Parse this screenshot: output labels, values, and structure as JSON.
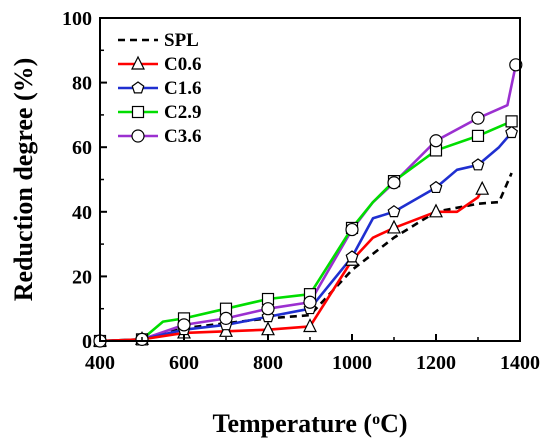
{
  "chart_data": {
    "type": "line",
    "xlabel_main": "Temperature (",
    "xlabel_sup": "o",
    "xlabel_end": "C)",
    "ylabel": "Reduction degree (%)",
    "xlim": [
      400,
      1400
    ],
    "ylim": [
      0,
      100
    ],
    "xticks": [
      "400",
      "600",
      "800",
      "1000",
      "1200",
      "1400"
    ],
    "yticks": [
      "0",
      "20",
      "40",
      "60",
      "80",
      "100"
    ],
    "legend_position": "top-left",
    "series": [
      {
        "name": "SPL",
        "color": "#000000",
        "dashed": true,
        "marker": "none",
        "x": [
          400,
          500,
          600,
          700,
          800,
          900,
          1000,
          1100,
          1200,
          1300,
          1350,
          1380
        ],
        "y": [
          0,
          0.5,
          4,
          5.5,
          7,
          8,
          22,
          32,
          40,
          42.5,
          43,
          52
        ],
        "marker_x": []
      },
      {
        "name": "C0.6",
        "color": "#ff0000",
        "marker": "triangle",
        "x": [
          400,
          500,
          600,
          700,
          800,
          900,
          1000,
          1050,
          1100,
          1200,
          1250,
          1300,
          1310
        ],
        "y": [
          0,
          0.5,
          2.5,
          3,
          3.5,
          4.5,
          25,
          32,
          35,
          40,
          40,
          44.5,
          47
        ],
        "marker_x": [
          400,
          500,
          600,
          700,
          800,
          900,
          1000,
          1100,
          1200,
          1310
        ]
      },
      {
        "name": "C1.6",
        "color": "#1f2fd0",
        "marker": "pentagon",
        "x": [
          400,
          500,
          600,
          700,
          800,
          900,
          1000,
          1050,
          1100,
          1200,
          1250,
          1300,
          1350,
          1380
        ],
        "y": [
          0,
          0.5,
          3.5,
          5,
          7.5,
          10,
          26,
          38,
          40,
          47.5,
          53,
          54.5,
          60,
          64.5
        ],
        "marker_x": [
          400,
          500,
          600,
          700,
          800,
          900,
          1000,
          1100,
          1200,
          1300,
          1380
        ]
      },
      {
        "name": "C2.9",
        "color": "#00dd00",
        "marker": "square",
        "x": [
          400,
          500,
          550,
          600,
          700,
          800,
          900,
          1000,
          1050,
          1100,
          1200,
          1300,
          1380
        ],
        "y": [
          0,
          0.5,
          6,
          7,
          10,
          13,
          14.5,
          35,
          43,
          49.5,
          59,
          63.5,
          68
        ],
        "marker_x": [
          400,
          500,
          600,
          700,
          800,
          900,
          1000,
          1100,
          1200,
          1300,
          1380
        ]
      },
      {
        "name": "C3.6",
        "color": "#9b30d0",
        "marker": "circle",
        "x": [
          400,
          500,
          600,
          700,
          800,
          900,
          1000,
          1050,
          1100,
          1200,
          1300,
          1370,
          1390
        ],
        "y": [
          0,
          0.5,
          5,
          7,
          10,
          12,
          34.5,
          43,
          49,
          62,
          69,
          73,
          85.5
        ],
        "marker_x": [
          400,
          500,
          600,
          700,
          800,
          900,
          1000,
          1100,
          1200,
          1300,
          1390
        ]
      }
    ]
  }
}
